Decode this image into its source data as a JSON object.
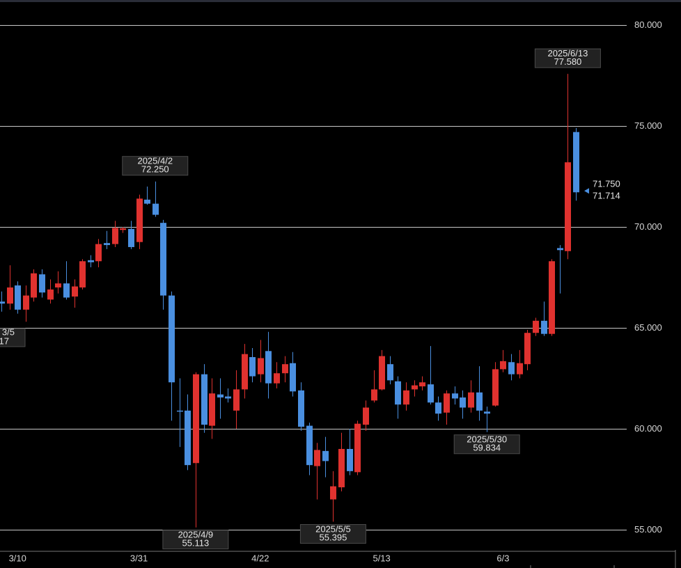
{
  "chart_data": {
    "type": "candlestick",
    "categories": [
      null,
      null,
      "3/10",
      null,
      null,
      null,
      null,
      null,
      null,
      null,
      null,
      null,
      null,
      null,
      null,
      null,
      null,
      "3/31",
      null,
      null,
      null,
      null,
      null,
      null,
      null,
      null,
      null,
      null,
      null,
      null,
      null,
      null,
      "4/22",
      null,
      null,
      null,
      null,
      null,
      null,
      null,
      null,
      null,
      null,
      null,
      null,
      null,
      null,
      "5/13",
      null,
      null,
      null,
      null,
      null,
      null,
      null,
      null,
      null,
      null,
      null,
      null,
      null,
      null,
      "6/3",
      null,
      null,
      null,
      null,
      null,
      null,
      null,
      null,
      null
    ],
    "series": [
      {
        "up_color": "#e0322f",
        "down_color": "#4a8fe0",
        "open": [
          66.3,
          66.2,
          67.1,
          65.9,
          66.5,
          67.65,
          66.4,
          67.0,
          67.2,
          66.55,
          67.0,
          68.35,
          68.3,
          69.2,
          69.15,
          69.85,
          69.9,
          69.25,
          71.35,
          71.15,
          70.2,
          66.6,
          60.9,
          60.9,
          58.3,
          62.7,
          60.15,
          61.7,
          61.6,
          60.9,
          61.95,
          63.55,
          62.7,
          63.85,
          62.25,
          62.75,
          63.25,
          61.9,
          60.15,
          58.15,
          58.9,
          56.5,
          57.1,
          59.0,
          57.85,
          60.2,
          61.4,
          61.95,
          63.2,
          62.35,
          61.2,
          61.95,
          62.1,
          62.2,
          61.3,
          60.8,
          61.75,
          61.55,
          61.05,
          61.8,
          60.85,
          61.15,
          62.95,
          63.3,
          62.7,
          63.2,
          64.75,
          65.35,
          64.7,
          68.95,
          68.8,
          74.7
        ],
        "high": [
          66.8,
          68.1,
          67.3,
          67.1,
          67.9,
          67.9,
          67.4,
          67.8,
          68.3,
          67.4,
          68.4,
          68.6,
          69.4,
          69.8,
          70.3,
          70.0,
          70.3,
          71.6,
          72.0,
          72.25,
          70.35,
          66.8,
          62.5,
          61.7,
          62.8,
          63.2,
          62.5,
          62.5,
          62.0,
          62.9,
          64.2,
          64.0,
          64.4,
          64.8,
          63.3,
          63.6,
          63.8,
          62.3,
          60.3,
          59.3,
          59.6,
          57.9,
          59.8,
          60.0,
          60.4,
          61.4,
          62.9,
          63.9,
          63.6,
          62.6,
          62.3,
          62.4,
          62.6,
          64.1,
          61.6,
          61.9,
          62.1,
          61.9,
          62.4,
          63.1,
          61.1,
          63.3,
          63.9,
          63.7,
          63.9,
          64.9,
          65.5,
          66.3,
          68.4,
          69.1,
          77.58,
          74.9
        ],
        "low": [
          65.8,
          65.9,
          65.7,
          65.3,
          66.3,
          66.5,
          66.2,
          66.7,
          66.4,
          66.0,
          66.9,
          68.0,
          68.0,
          68.9,
          69.0,
          69.7,
          68.9,
          68.9,
          71.1,
          70.5,
          65.9,
          60.4,
          59.1,
          57.95,
          55.113,
          59.8,
          59.5,
          60.5,
          61.3,
          60.0,
          61.5,
          62.3,
          62.3,
          61.5,
          62.0,
          62.3,
          61.6,
          59.9,
          57.7,
          56.5,
          57.6,
          55.395,
          56.9,
          57.7,
          57.7,
          59.9,
          61.3,
          61.9,
          62.2,
          60.5,
          60.9,
          61.6,
          61.9,
          61.2,
          60.4,
          60.2,
          61.2,
          60.5,
          60.8,
          60.4,
          59.834,
          61.1,
          62.8,
          62.4,
          62.5,
          62.9,
          64.6,
          64.6,
          64.6,
          66.7,
          68.4,
          71.3
        ],
        "close": [
          66.2,
          67.0,
          65.9,
          66.6,
          67.7,
          66.75,
          66.9,
          67.2,
          66.5,
          67.05,
          68.3,
          68.25,
          69.15,
          69.1,
          69.95,
          69.93,
          69.0,
          71.4,
          71.15,
          70.6,
          66.6,
          62.3,
          60.85,
          58.2,
          62.7,
          60.2,
          61.75,
          61.55,
          61.5,
          61.95,
          63.7,
          62.6,
          63.5,
          62.25,
          62.75,
          63.2,
          61.85,
          60.1,
          58.2,
          58.95,
          58.4,
          57.15,
          59.0,
          57.9,
          60.25,
          61.05,
          61.95,
          63.6,
          62.4,
          61.2,
          61.9,
          62.15,
          62.3,
          61.3,
          60.75,
          61.75,
          61.5,
          61.05,
          61.8,
          60.9,
          60.75,
          62.95,
          63.35,
          62.7,
          63.25,
          64.75,
          65.35,
          64.7,
          68.3,
          68.85,
          73.2,
          71.714
        ]
      }
    ],
    "ylim": [
      53.93,
      81.24
    ],
    "yticks": [
      {
        "value": 55,
        "label": "55.000"
      },
      {
        "value": 60,
        "label": "60.000"
      },
      {
        "value": 65,
        "label": "65.000"
      },
      {
        "value": 70,
        "label": "70.000"
      },
      {
        "value": 75,
        "label": "75.000"
      },
      {
        "value": 80,
        "label": "80.000"
      }
    ],
    "grid": true,
    "annotations": [
      {
        "date": "2025/6/13",
        "price": {
          "value": 77.58,
          "label": "77.580"
        }
      },
      {
        "date": "2025/4/2",
        "price": {
          "value": 72.25,
          "label": "72.250"
        }
      },
      {
        "date": "2025/5/30",
        "price": {
          "value": 59.834,
          "label": "59.834"
        }
      },
      {
        "date": "2025/4/9",
        "price": {
          "value": 55.113,
          "label": "55.113"
        }
      },
      {
        "date": "2025/5/5",
        "price": {
          "value": 55.395,
          "label": "55.395"
        }
      }
    ],
    "clipped_annotation": {
      "date": "3/5",
      "price": "17"
    },
    "price_labels": [
      {
        "value": 71.75,
        "label": "71.750",
        "color": "#e0322f"
      },
      {
        "value": 71.714,
        "label": "71.714",
        "color": "#4a8fe0"
      }
    ]
  }
}
